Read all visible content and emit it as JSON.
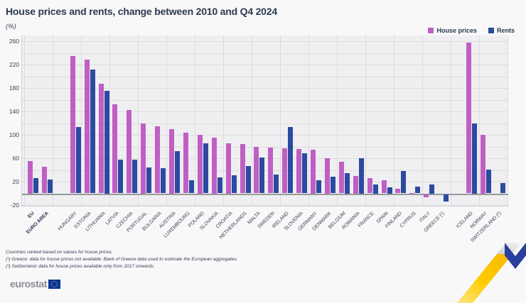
{
  "title": "House prices and rents, change between 2010 and Q4 2024",
  "subtitle": "(%)",
  "legend": {
    "house_prices": "House prices",
    "rents": "Rents"
  },
  "colors": {
    "house_prices": "#bf5fc4",
    "rents": "#2b4aa0",
    "title_text": "#2d3950",
    "plot_bg": "#efeff1"
  },
  "footnotes": {
    "line1": "Countries ranked based on values for house prices.",
    "line2": "(¹) Greece: data for house prices not available. Bank of Greece data used to estimate the European aggregates.",
    "line3": "(²) Switzerland: data for house prices available only from 2017 onwards."
  },
  "logo": {
    "text": "eurostat"
  },
  "chart_data": {
    "type": "bar",
    "title": "House prices and rents, change between 2010 and Q4 2024",
    "unit": "%",
    "ylim": [
      -20,
      260
    ],
    "ytick_interval": 40,
    "gridline_interval": 20,
    "grid": true,
    "legend_position": "top-right",
    "categories": [
      "EU",
      "EURO AREA",
      "HUNGARY",
      "ESTONIA",
      "LITHUANIA",
      "LATVIA",
      "CZECHIA",
      "PORTUGAL",
      "BULGARIA",
      "AUSTRIA",
      "LUXEMBOURG",
      "POLAND",
      "SLOVAKIA",
      "CROATIA",
      "NETHERLANDS",
      "MALTA",
      "SWEDEN",
      "IRELAND",
      "SLOVENIA",
      "GERMANY",
      "DENMARK",
      "BELGIUM",
      "ROMANIA",
      "FRANCE",
      "SPAIN",
      "FINLAND",
      "CYPRUS",
      "ITALY",
      "GREECE (¹)",
      "ICELAND",
      "NORWAY",
      "SWITZERLAND (²)"
    ],
    "bold_categories": [
      "EU",
      "EURO AREA"
    ],
    "group_breaks_after": [
      "EURO AREA",
      "GREECE (¹)"
    ],
    "series": [
      {
        "name": "House prices",
        "color": "#bf5fc4",
        "values": [
          55,
          46,
          234,
          228,
          187,
          152,
          142,
          120,
          114,
          110,
          104,
          100,
          95,
          85,
          84,
          79,
          78,
          77,
          76,
          75,
          60,
          54,
          30,
          26,
          22,
          8,
          1,
          -5,
          null,
          257,
          100,
          null
        ]
      },
      {
        "name": "Rents",
        "color": "#2b4aa0",
        "values": [
          26,
          24,
          113,
          212,
          175,
          58,
          58,
          44,
          43,
          72,
          22,
          86,
          27,
          31,
          47,
          61,
          32,
          113,
          68,
          23,
          28,
          35,
          60,
          15,
          10,
          38,
          11,
          15,
          -13,
          120,
          41,
          17
        ]
      }
    ]
  }
}
